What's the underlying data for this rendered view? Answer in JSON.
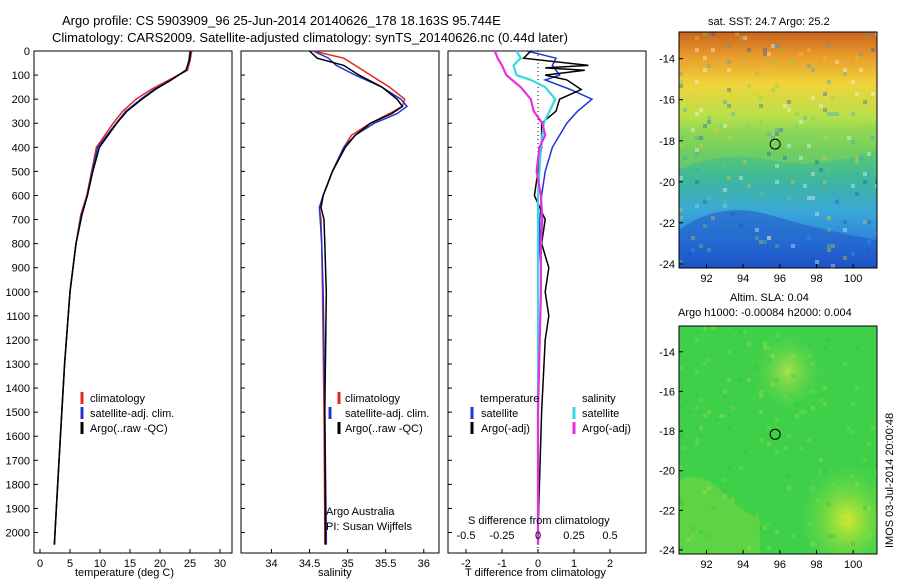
{
  "header": {
    "title_line1": "Argo profile: CS 5903909_96 25-Jun-2014 20140626_178 18.163S 95.744E",
    "title_line2": "Climatology: CARS2009. Satellite-adjusted climatology: synTS_20140626.nc (0.44d later)"
  },
  "colors": {
    "climatology": "#e8261c",
    "satellite": "#1f36d6",
    "argo": "#000000",
    "sat_salinity": "#35d9e0",
    "argo_salinity": "#e82ee0"
  },
  "depth_axis": {
    "ticks": [
      0,
      100,
      200,
      300,
      400,
      500,
      600,
      700,
      800,
      900,
      1000,
      1100,
      1200,
      1300,
      1400,
      1500,
      1600,
      1700,
      1800,
      1900,
      2000
    ]
  },
  "chart_data": [
    {
      "type": "line",
      "id": "temperature",
      "xlabel": "temperature (deg C)",
      "ylabel": "",
      "xlim": [
        -1,
        32
      ],
      "ylim": [
        2060,
        0
      ],
      "xticks": [
        0,
        5,
        10,
        15,
        20,
        25,
        30
      ],
      "legend": [
        "climatology",
        "satellite-adj. clim.",
        "Argo(..raw -QC)"
      ],
      "series": [
        {
          "name": "climatology",
          "color": "#e8261c",
          "depth": [
            0,
            40,
            80,
            120,
            160,
            200,
            250,
            300,
            400,
            500,
            600,
            680,
            800,
            1000,
            1300,
            1600,
            2000,
            2050
          ],
          "values": [
            25.3,
            25.0,
            24.6,
            21.5,
            18.5,
            16.0,
            13.8,
            12.2,
            9.4,
            8.6,
            7.8,
            6.8,
            6.0,
            5.0,
            4.1,
            3.4,
            2.5,
            2.4
          ]
        },
        {
          "name": "satellite-adj. clim.",
          "color": "#1f36d6",
          "depth": [
            0,
            40,
            80,
            120,
            160,
            200,
            250,
            300,
            400,
            500,
            600,
            680,
            800,
            1000,
            1300,
            1600,
            2000,
            2050
          ],
          "values": [
            25.0,
            24.8,
            24.4,
            21.8,
            19.0,
            16.8,
            14.3,
            12.7,
            9.6,
            8.7,
            7.9,
            6.9,
            6.0,
            5.0,
            4.1,
            3.4,
            2.5,
            2.4
          ]
        },
        {
          "name": "Argo(..raw -QC)",
          "color": "#000000",
          "depth": [
            0,
            40,
            80,
            120,
            160,
            200,
            250,
            300,
            400,
            500,
            600,
            680,
            800,
            1000,
            1300,
            1600,
            2000,
            2050
          ],
          "values": [
            25.1,
            24.9,
            24.3,
            21.9,
            19.2,
            17.0,
            14.5,
            12.8,
            9.9,
            8.8,
            7.9,
            7.0,
            6.0,
            5.0,
            4.1,
            3.4,
            2.5,
            2.4
          ]
        }
      ]
    },
    {
      "type": "line",
      "id": "salinity",
      "xlabel": "salinity",
      "ylabel": "",
      "xlim": [
        33.6,
        36.2
      ],
      "ylim": [
        2060,
        0
      ],
      "xticks": [
        34,
        34.5,
        35,
        35.5,
        36
      ],
      "legend": [
        "climatology",
        "satellite-adj. clim.",
        "Argo(..raw -QC)"
      ],
      "annotation": [
        "Argo Australia",
        "PI: Susan Wijffels"
      ],
      "series": [
        {
          "name": "climatology",
          "color": "#e8261c",
          "depth": [
            0,
            30,
            60,
            100,
            150,
            200,
            230,
            260,
            300,
            350,
            400,
            500,
            600,
            650,
            700,
            800,
            1000,
            1500,
            2000,
            2050
          ],
          "values": [
            34.55,
            34.95,
            35.1,
            35.3,
            35.55,
            35.75,
            35.72,
            35.55,
            35.3,
            35.05,
            34.95,
            34.8,
            34.68,
            34.63,
            34.65,
            34.66,
            34.67,
            34.69,
            34.7,
            34.7
          ]
        },
        {
          "name": "satellite-adj. clim.",
          "color": "#1f36d6",
          "depth": [
            0,
            30,
            60,
            100,
            150,
            200,
            230,
            260,
            300,
            350,
            400,
            500,
            600,
            650,
            700,
            800,
            1000,
            1500,
            2000,
            2050
          ],
          "values": [
            34.55,
            34.75,
            34.85,
            35.1,
            35.45,
            35.7,
            35.78,
            35.65,
            35.35,
            35.1,
            34.95,
            34.8,
            34.68,
            34.63,
            34.64,
            34.66,
            34.68,
            34.7,
            34.72,
            34.72
          ]
        },
        {
          "name": "Argo(..raw -QC)",
          "color": "#000000",
          "depth": [
            0,
            30,
            60,
            100,
            150,
            200,
            230,
            260,
            300,
            350,
            400,
            500,
            600,
            650,
            700,
            800,
            1000,
            1500,
            2000,
            2050
          ],
          "values": [
            34.5,
            34.6,
            34.95,
            35.15,
            35.45,
            35.65,
            35.72,
            35.58,
            35.3,
            35.1,
            34.97,
            34.8,
            34.68,
            34.65,
            34.69,
            34.7,
            34.72,
            34.7,
            34.71,
            34.71
          ]
        }
      ]
    },
    {
      "type": "line",
      "id": "difference",
      "xlabel": "T difference from climatology",
      "xlabel_top": "S difference from climatology",
      "xlim": [
        -2.5,
        3.0
      ],
      "ylim": [
        2060,
        0
      ],
      "xticks_T": [
        -2,
        -1,
        0,
        1,
        2
      ],
      "xticks_S": [
        "-0.5",
        "-0.25",
        "0",
        "0.25",
        "0.5"
      ],
      "legend_T": {
        "title": "temperature",
        "items": [
          "satellite",
          "Argo(-adj)"
        ]
      },
      "legend_S": {
        "title": "salinity",
        "items": [
          "satellite",
          "Argo(-adj)"
        ]
      },
      "series": [
        {
          "name": "T satellite",
          "color": "#1f36d6",
          "depth": [
            0,
            30,
            60,
            100,
            120,
            160,
            200,
            250,
            300,
            400,
            500,
            600,
            700,
            800,
            900,
            1000,
            1500,
            2000,
            2050
          ],
          "values": [
            -0.3,
            0.5,
            0.4,
            0.6,
            0.2,
            0.9,
            1.5,
            1.1,
            0.8,
            0.4,
            0.2,
            0.1,
            0.05,
            0.05,
            0.0,
            0.0,
            0.0,
            0.0,
            0.0
          ]
        },
        {
          "name": "T Argo(-adj)",
          "color": "#000000",
          "depth": [
            0,
            30,
            60,
            70,
            80,
            100,
            120,
            160,
            200,
            250,
            300,
            400,
            500,
            600,
            700,
            800,
            900,
            1000,
            1100,
            1200,
            1500,
            2000,
            2050
          ],
          "values": [
            -0.2,
            -0.4,
            1.4,
            0.2,
            1.3,
            0.2,
            0.8,
            1.2,
            0.6,
            0.5,
            0.1,
            0.1,
            0.0,
            -0.1,
            0.2,
            0.1,
            0.3,
            0.2,
            0.3,
            0.2,
            0.1,
            0.0,
            0.0
          ]
        },
        {
          "name": "S satellite",
          "color": "#35d9e0",
          "depth": [
            0,
            30,
            60,
            100,
            120,
            150,
            200,
            250,
            300,
            400,
            500,
            600,
            700,
            800,
            1000,
            1500,
            2000,
            2050
          ],
          "values": [
            -0.15,
            -0.12,
            -0.17,
            -0.15,
            -0.05,
            0.05,
            0.12,
            0.08,
            0.04,
            0.02,
            0.01,
            0.0,
            0.0,
            0.0,
            0.0,
            0.0,
            0.0,
            0.0
          ]
        },
        {
          "name": "S Argo(-adj)",
          "color": "#e82ee0",
          "depth": [
            0,
            30,
            60,
            100,
            150,
            200,
            250,
            300,
            350,
            400,
            500,
            600,
            700,
            800,
            1000,
            1500,
            2000,
            2050
          ],
          "values": [
            -0.3,
            -0.28,
            -0.25,
            -0.22,
            -0.12,
            -0.05,
            -0.03,
            0.03,
            0.05,
            0.01,
            -0.01,
            0.02,
            0.03,
            0.02,
            0.02,
            0.0,
            0.0,
            0.0
          ]
        }
      ]
    },
    {
      "type": "heatmap",
      "id": "sst_map",
      "title": "sat. SST: 24.7  Argo: 25.2",
      "xlim": [
        90.5,
        101.3
      ],
      "ylim": [
        -24.2,
        -12.7
      ],
      "xticks": [
        92,
        94,
        96,
        98,
        100
      ],
      "yticks": [
        -14,
        -16,
        -18,
        -20,
        -22,
        -24
      ],
      "marker": {
        "lon": 95.744,
        "lat": -18.163
      }
    },
    {
      "type": "heatmap",
      "id": "sla_map",
      "title_line1": "Altim. SLA: 0.04",
      "title_line2": "Argo h1000: -0.00084 h2000: 0.004",
      "xlim": [
        90.5,
        101.3
      ],
      "ylim": [
        -24.2,
        -12.7
      ],
      "xticks": [
        92,
        94,
        96,
        98,
        100
      ],
      "yticks": [
        -14,
        -16,
        -18,
        -20,
        -22,
        -24
      ],
      "marker": {
        "lon": 95.744,
        "lat": -18.163
      }
    }
  ],
  "side_label": "IMOS 03-Jul-2014 20:00:48"
}
